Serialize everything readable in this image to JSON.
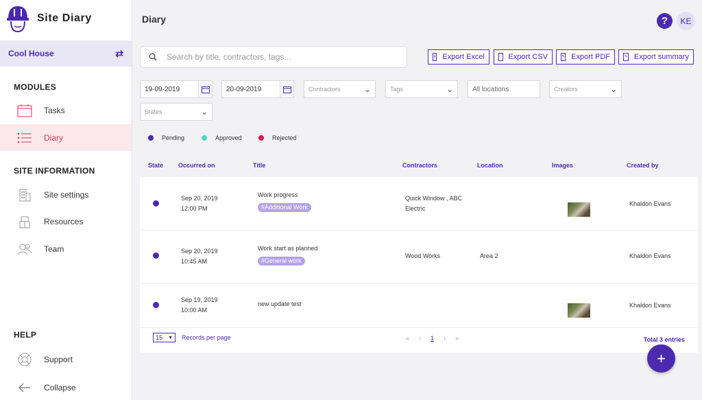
{
  "app": {
    "name": "Site Diary"
  },
  "project": {
    "name": "Cool House"
  },
  "sidebar": {
    "modules_heading": "MODULES",
    "site_info_heading": "SITE INFORMATION",
    "help_heading": "HELP",
    "items": [
      {
        "label": "Tasks",
        "icon": "calendar-icon"
      },
      {
        "label": "Diary",
        "icon": "list-icon"
      },
      {
        "label": "Site settings",
        "icon": "building-icon"
      },
      {
        "label": "Resources",
        "icon": "boxes-icon"
      },
      {
        "label": "Team",
        "icon": "team-icon"
      },
      {
        "label": "Support",
        "icon": "lifebuoy-icon"
      },
      {
        "label": "Collapse",
        "icon": "arrow-left-icon"
      }
    ]
  },
  "header": {
    "title": "Diary",
    "help": "?",
    "avatar": "KE"
  },
  "search": {
    "placeholder": "Search by title, contractors, tags..."
  },
  "exports": [
    "Export Excel",
    "Export CSV",
    "Export PDF",
    "Export summary"
  ],
  "filters": {
    "date_from": "19-09-2019",
    "date_to": "20-09-2019",
    "contractors": "Contractors",
    "tags": "Tags",
    "locations": "All locations",
    "creators": "Creators",
    "states": "States"
  },
  "legend": [
    {
      "label": "Pending",
      "color": "#4b2ab0"
    },
    {
      "label": "Approved",
      "color": "#4ed8c2"
    },
    {
      "label": "Rejected",
      "color": "#e0184a"
    }
  ],
  "columns": [
    "State",
    "Occurred on",
    "Title",
    "Contractors",
    "Location",
    "Images",
    "Created by"
  ],
  "rows": [
    {
      "state": "Pending",
      "date": "Sep 20, 2019",
      "time": "12:00 PM",
      "title": "Work progress",
      "tag": "#Additional Work",
      "contractors_line1": "Quick Window , ABC",
      "contractors_line2": "Electric",
      "location": "",
      "has_image": true,
      "created_by": "Khaldon Evans"
    },
    {
      "state": "Pending",
      "date": "Sep 20, 2019",
      "time": "10:45 AM",
      "title": "Work start as planned",
      "tag": "#General work",
      "contractors_line1": "Wood Works",
      "contractors_line2": "",
      "location": "Area 2",
      "has_image": false,
      "created_by": "Khaldon Evans"
    },
    {
      "state": "Pending",
      "date": "Sep 19, 2019",
      "time": "10:00 AM",
      "title": "new update test",
      "tag": "",
      "contractors_line1": "",
      "contractors_line2": "",
      "location": "",
      "has_image": true,
      "created_by": "Khaldon Evans"
    }
  ],
  "footer": {
    "per_page": "15",
    "per_page_label": "Records per page",
    "pager": {
      "first": "«",
      "prev": "‹",
      "page": "1",
      "next": "›",
      "last": "»"
    },
    "total": "Total 3 entries"
  },
  "fab": "+"
}
